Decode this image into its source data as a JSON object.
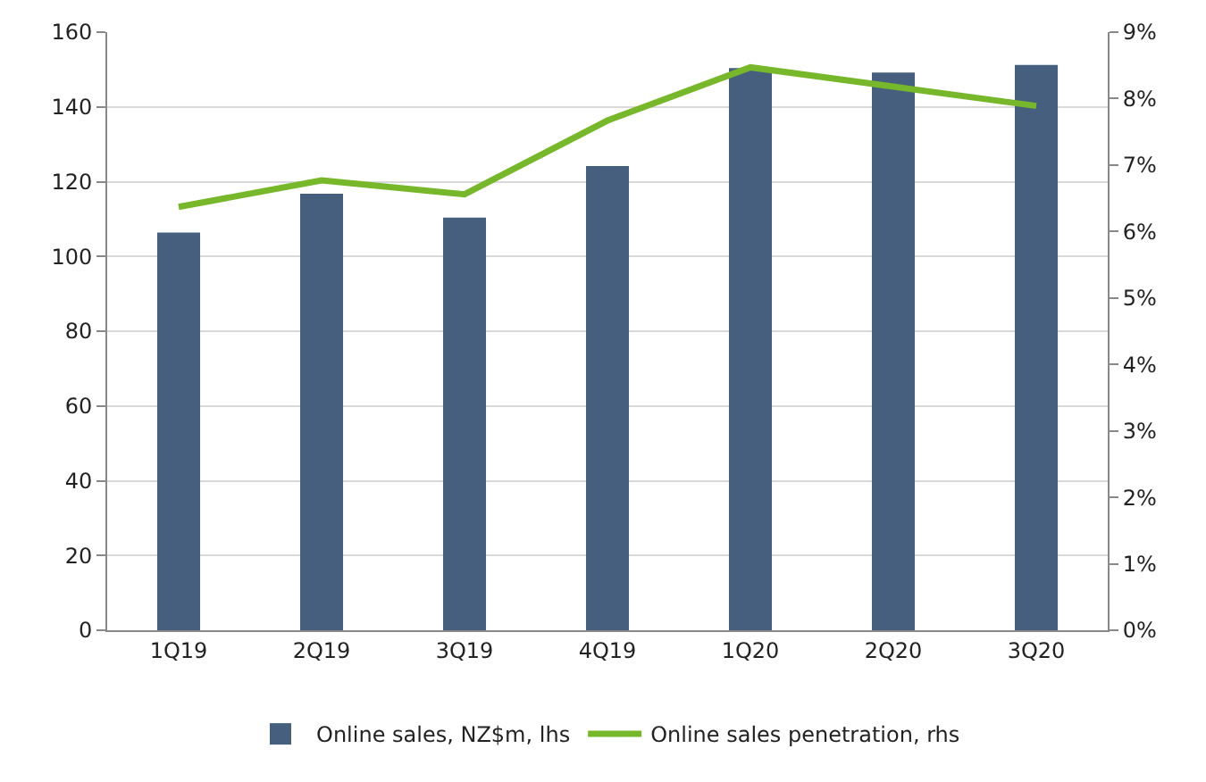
{
  "chart_data": {
    "type": "bar",
    "categories": [
      "1Q19",
      "2Q19",
      "3Q19",
      "4Q19",
      "1Q20",
      "2Q20",
      "3Q20"
    ],
    "series": [
      {
        "name": "Online sales, NZ$m, lhs",
        "color": "#475f7e",
        "values": [
          106.4,
          116.8,
          110.4,
          124.2,
          150.4,
          149.2,
          151.2
        ]
      },
      {
        "name": "Online sales penetration, rhs",
        "type": "line",
        "axis": "y2",
        "color": "#76b82a",
        "values": [
          6.37,
          6.77,
          6.56,
          7.67,
          8.47,
          8.18,
          7.89
        ]
      }
    ],
    "ylim": [
      0,
      160
    ],
    "yticks": [
      0,
      20,
      40,
      60,
      80,
      100,
      120,
      140,
      160
    ],
    "y2lim": [
      0,
      9
    ],
    "y2ticks": [
      {
        "value": 0,
        "label": "0%"
      },
      {
        "value": 1,
        "label": "1%"
      },
      {
        "value": 2,
        "label": "2%"
      },
      {
        "value": 3,
        "label": "3%"
      },
      {
        "value": 4,
        "label": "4%"
      },
      {
        "value": 5,
        "label": "5%"
      },
      {
        "value": 6,
        "label": "6%"
      },
      {
        "value": 7,
        "label": "7%"
      },
      {
        "value": 8,
        "label": "8%"
      },
      {
        "value": 9,
        "label": "9%"
      }
    ],
    "grid": "y",
    "legend": "bottom",
    "marker": "none"
  }
}
